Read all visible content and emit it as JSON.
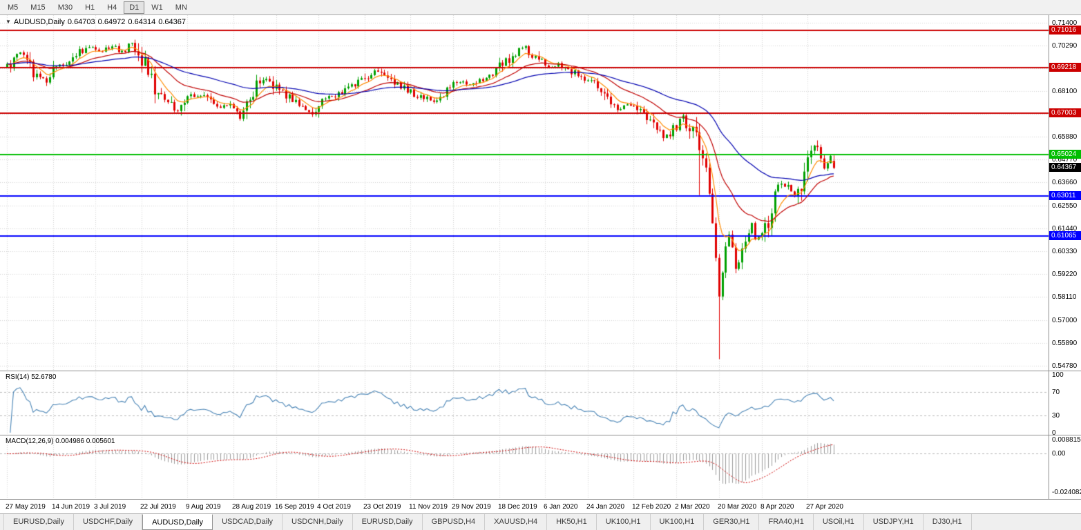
{
  "toolbar": {
    "timeframes": [
      "M5",
      "M15",
      "M30",
      "H1",
      "H4",
      "D1",
      "W1",
      "MN"
    ],
    "active": "D1"
  },
  "header": {
    "symbol_period": "AUDUSD,Daily",
    "open": "0.64703",
    "high": "0.64972",
    "low": "0.64314",
    "close": "0.64367"
  },
  "chart_data": {
    "type": "candlestick",
    "symbol": "AUDUSD",
    "period": "Daily",
    "candle_count": 253,
    "last_candle_ohlc": {
      "o": 0.64703,
      "h": 0.64972,
      "l": 0.64314,
      "c": 0.64367
    },
    "price_axis": {
      "top": 0.714,
      "bottom": 0.5478,
      "labels": [
        "0.71400",
        "0.70290",
        "0.69180",
        "0.68100",
        "0.66990",
        "0.65880",
        "0.64770",
        "0.63660",
        "0.62550",
        "0.61440",
        "0.60330",
        "0.59220",
        "0.58110",
        "0.57000",
        "0.55890",
        "0.54780"
      ],
      "current_price_label": "0.64367"
    },
    "horizontal_levels": [
      {
        "price": 0.71016,
        "label": "0.71016",
        "color": "#CC0000"
      },
      {
        "price": 0.69218,
        "label": "0.69218",
        "color": "#CC0000"
      },
      {
        "price": 0.67003,
        "label": "0.67003",
        "color": "#CC0000"
      },
      {
        "price": 0.65024,
        "label": "0.65024",
        "color": "#00BE00"
      },
      {
        "price": 0.63011,
        "label": "0.63011",
        "color": "#0000FF"
      },
      {
        "price": 0.61065,
        "label": "0.61065",
        "color": "#0000FF"
      }
    ],
    "date_ticks": [
      {
        "i": 0,
        "label": "27 May 2019"
      },
      {
        "i": 14,
        "label": "14 Jun 2019"
      },
      {
        "i": 27,
        "label": "3 Jul 2019"
      },
      {
        "i": 41,
        "label": "22 Jul 2019"
      },
      {
        "i": 55,
        "label": "9 Aug 2019"
      },
      {
        "i": 69,
        "label": "28 Aug 2019"
      },
      {
        "i": 82,
        "label": "16 Sep 2019"
      },
      {
        "i": 95,
        "label": "4 Oct 2019"
      },
      {
        "i": 109,
        "label": "23 Oct 2019"
      },
      {
        "i": 123,
        "label": "11 Nov 2019"
      },
      {
        "i": 136,
        "label": "29 Nov 2019"
      },
      {
        "i": 150,
        "label": "18 Dec 2019"
      },
      {
        "i": 164,
        "label": "6 Jan 2020"
      },
      {
        "i": 177,
        "label": "24 Jan 2020"
      },
      {
        "i": 191,
        "label": "12 Feb 2020"
      },
      {
        "i": 204,
        "label": "2 Mar 2020"
      },
      {
        "i": 217,
        "label": "20 Mar 2020"
      },
      {
        "i": 230,
        "label": "8 Apr 2020"
      },
      {
        "i": 244,
        "label": "27 Apr 2020"
      }
    ],
    "close_anchors": [
      [
        0,
        0.6925
      ],
      [
        2,
        0.6955
      ],
      [
        4,
        0.7
      ],
      [
        6,
        0.6945
      ],
      [
        9,
        0.6875
      ],
      [
        12,
        0.6865
      ],
      [
        15,
        0.6925
      ],
      [
        18,
        0.6955
      ],
      [
        22,
        0.6995
      ],
      [
        26,
        0.7025
      ],
      [
        29,
        0.7005
      ],
      [
        32,
        0.703
      ],
      [
        35,
        0.6995
      ],
      [
        38,
        0.704
      ],
      [
        40,
        0.7
      ],
      [
        43,
        0.69
      ],
      [
        46,
        0.679
      ],
      [
        49,
        0.676
      ],
      [
        52,
        0.6705
      ],
      [
        55,
        0.6775
      ],
      [
        59,
        0.6795
      ],
      [
        62,
        0.676
      ],
      [
        65,
        0.6725
      ],
      [
        68,
        0.6745
      ],
      [
        71,
        0.6685
      ],
      [
        74,
        0.678
      ],
      [
        77,
        0.687
      ],
      [
        79,
        0.688
      ],
      [
        82,
        0.682
      ],
      [
        85,
        0.679
      ],
      [
        88,
        0.6755
      ],
      [
        91,
        0.672
      ],
      [
        93,
        0.6685
      ],
      [
        95,
        0.6765
      ],
      [
        98,
        0.6775
      ],
      [
        101,
        0.679
      ],
      [
        104,
        0.6825
      ],
      [
        107,
        0.6855
      ],
      [
        110,
        0.6885
      ],
      [
        112,
        0.6915
      ],
      [
        115,
        0.688
      ],
      [
        118,
        0.685
      ],
      [
        121,
        0.6825
      ],
      [
        124,
        0.679
      ],
      [
        127,
        0.6775
      ],
      [
        130,
        0.6762
      ],
      [
        133,
        0.679
      ],
      [
        136,
        0.684
      ],
      [
        139,
        0.6855
      ],
      [
        142,
        0.6842
      ],
      [
        145,
        0.686
      ],
      [
        148,
        0.6885
      ],
      [
        151,
        0.694
      ],
      [
        154,
        0.6985
      ],
      [
        157,
        0.7025
      ],
      [
        159,
        0.7
      ],
      [
        162,
        0.696
      ],
      [
        165,
        0.6925
      ],
      [
        168,
        0.6935
      ],
      [
        171,
        0.691
      ],
      [
        174,
        0.6888
      ],
      [
        177,
        0.6855
      ],
      [
        180,
        0.684
      ],
      [
        183,
        0.677
      ],
      [
        186,
        0.672
      ],
      [
        189,
        0.6745
      ],
      [
        192,
        0.672
      ],
      [
        195,
        0.6685
      ],
      [
        198,
        0.664
      ],
      [
        200,
        0.66
      ],
      [
        202,
        0.6588
      ],
      [
        204,
        0.665
      ],
      [
        206,
        0.668
      ],
      [
        208,
        0.661
      ],
      [
        210,
        0.6588
      ],
      [
        211,
        0.65
      ],
      [
        213,
        0.6455
      ],
      [
        214,
        0.63
      ],
      [
        215,
        0.615
      ],
      [
        216,
        0.5985
      ],
      [
        217,
        0.58
      ],
      [
        218,
        0.5935
      ],
      [
        219,
        0.609
      ],
      [
        220,
        0.6125
      ],
      [
        221,
        0.605
      ],
      [
        222,
        0.5965
      ],
      [
        223,
        0.6
      ],
      [
        225,
        0.61
      ],
      [
        227,
        0.6165
      ],
      [
        228,
        0.6085
      ],
      [
        230,
        0.612
      ],
      [
        232,
        0.617
      ],
      [
        234,
        0.628
      ],
      [
        236,
        0.6355
      ],
      [
        238,
        0.634
      ],
      [
        240,
        0.63
      ],
      [
        242,
        0.636
      ],
      [
        244,
        0.645
      ],
      [
        246,
        0.653
      ],
      [
        247,
        0.6555
      ],
      [
        248,
        0.648
      ],
      [
        249,
        0.6425
      ],
      [
        250,
        0.6455
      ],
      [
        251,
        0.6495
      ],
      [
        252,
        0.64367
      ]
    ],
    "special_wicks": [
      {
        "i": 211,
        "low": 0.6305
      },
      {
        "i": 217,
        "low": 0.551
      },
      {
        "i": 247,
        "high": 0.657
      }
    ],
    "moving_averages": [
      {
        "period": 7,
        "color": "#FF8C00"
      },
      {
        "period": 21,
        "color": "#C00000"
      },
      {
        "period": 55,
        "color": "#0000B0"
      }
    ],
    "rsi": {
      "label": "RSI(14)",
      "value": "52.6780",
      "period": 14,
      "levels": [
        70,
        30
      ],
      "scale_labels": [
        "100",
        "70",
        "30",
        "0"
      ]
    },
    "macd": {
      "label": "MACD(12,26,9)",
      "value": "0.004986 0.005601",
      "fast": 12,
      "slow": 26,
      "signal": 9,
      "scale_labels": [
        "0.008815",
        "0.00",
        "-0.024082"
      ],
      "scale": {
        "max": 0.008815,
        "min": -0.024082
      }
    },
    "colors": {
      "up": "#00A000",
      "down": "#E00000",
      "grid": "#d2d2d2",
      "rsi_line": "#4682B4",
      "macd_hist": "#9b9b9b",
      "macd_signal": "#CC0000"
    }
  },
  "tabs": {
    "items": [
      "EURUSD,Daily",
      "USDCHF,Daily",
      "AUDUSD,Daily",
      "USDCAD,Daily",
      "USDCNH,Daily",
      "EURUSD,Daily",
      "GBPUSD,H4",
      "XAUUSD,H4",
      "HK50,H1",
      "UK100,H1",
      "UK100,H1",
      "GER30,H1",
      "FRA40,H1",
      "USOil,H1",
      "USDJPY,H1",
      "DJ30,H1"
    ],
    "active_index": 2
  }
}
